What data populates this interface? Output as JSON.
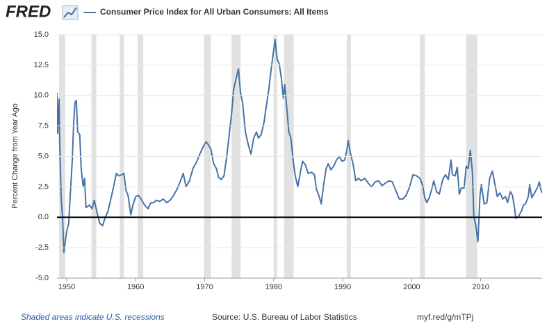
{
  "header": {
    "logo": "FRED"
  },
  "chart_data": {
    "type": "line",
    "ylabel": "Percent Change from Year Ago",
    "note": "Shaded areas indicate U.S. recessions",
    "source": "Source: U.S. Bureau of Labor Statistics",
    "link": "myf.red/g/mTPj",
    "xlim": [
      1948.6,
      2018.9
    ],
    "xticks": [
      1950,
      1960,
      1970,
      1980,
      1990,
      2000,
      2010
    ],
    "ylim": [
      -5,
      15
    ],
    "yticks": [
      {
        "value": -5,
        "label": "-5.0"
      },
      {
        "value": -2.5,
        "label": "-2.5"
      },
      {
        "value": 0,
        "label": "0.0"
      },
      {
        "value": 2.5,
        "label": "2.5"
      },
      {
        "value": 5,
        "label": "5.0"
      },
      {
        "value": 7.5,
        "label": "7.5"
      },
      {
        "value": 10,
        "label": "10.0"
      },
      {
        "value": 12.5,
        "label": "12.5"
      },
      {
        "value": 15,
        "label": "15.0"
      }
    ],
    "recessions": [
      [
        1948.9,
        1949.8
      ],
      [
        1953.6,
        1954.3
      ],
      [
        1957.7,
        1958.3
      ],
      [
        1960.3,
        1961.1
      ],
      [
        1969.9,
        1970.9
      ],
      [
        1973.9,
        1975.2
      ],
      [
        1980.0,
        1980.5
      ],
      [
        1981.5,
        1982.9
      ],
      [
        1990.6,
        1991.2
      ],
      [
        2001.2,
        2001.9
      ],
      [
        2007.9,
        2009.5
      ]
    ],
    "recession_color": "#e1e1e1",
    "x": [
      1948.6,
      1948.7,
      1948.9,
      1949.0,
      1949.2,
      1949.4,
      1949.6,
      1949.8,
      1950.0,
      1950.3,
      1950.5,
      1950.8,
      1951.0,
      1951.2,
      1951.4,
      1951.6,
      1951.9,
      1952.1,
      1952.4,
      1952.6,
      1952.8,
      1953.3,
      1953.7,
      1954.0,
      1954.4,
      1954.8,
      1955.2,
      1955.6,
      1956.0,
      1956.4,
      1956.8,
      1957.2,
      1957.6,
      1958.0,
      1958.3,
      1958.6,
      1958.9,
      1959.3,
      1959.6,
      1960.0,
      1960.4,
      1960.9,
      1961.3,
      1961.8,
      1962.2,
      1962.6,
      1963.0,
      1963.5,
      1964.0,
      1964.5,
      1965.0,
      1965.5,
      1966.0,
      1966.5,
      1966.9,
      1967.3,
      1967.8,
      1968.3,
      1968.8,
      1969.3,
      1969.8,
      1970.2,
      1970.5,
      1970.9,
      1971.3,
      1971.7,
      1972.0,
      1972.4,
      1972.8,
      1973.2,
      1973.6,
      1973.9,
      1974.2,
      1974.6,
      1974.9,
      1975.2,
      1975.5,
      1975.9,
      1976.3,
      1976.7,
      1977.1,
      1977.5,
      1977.8,
      1978.2,
      1978.6,
      1978.9,
      1979.3,
      1979.6,
      1979.9,
      1980.2,
      1980.5,
      1980.8,
      1981.1,
      1981.4,
      1981.6,
      1981.9,
      1982.2,
      1982.5,
      1982.8,
      1983.1,
      1983.5,
      1983.9,
      1984.2,
      1984.6,
      1985.0,
      1985.5,
      1985.9,
      1986.2,
      1986.6,
      1986.9,
      1987.2,
      1987.6,
      1987.9,
      1988.3,
      1988.7,
      1989.1,
      1989.5,
      1989.9,
      1990.3,
      1990.6,
      1990.8,
      1991.1,
      1991.5,
      1991.9,
      1992.3,
      1992.7,
      1993.2,
      1993.7,
      1994.2,
      1994.7,
      1995.2,
      1995.7,
      1996.2,
      1996.7,
      1997.2,
      1997.7,
      1998.2,
      1998.7,
      1999.2,
      1999.7,
      2000.2,
      2000.7,
      2001.2,
      2001.6,
      2001.9,
      2002.2,
      2002.6,
      2002.9,
      2003.2,
      2003.6,
      2004.0,
      2004.5,
      2004.9,
      2005.3,
      2005.7,
      2005.9,
      2006.3,
      2006.6,
      2006.9,
      2007.2,
      2007.6,
      2007.9,
      2008.2,
      2008.5,
      2008.8,
      2009.0,
      2009.3,
      2009.6,
      2009.9,
      2010.1,
      2010.5,
      2010.9,
      2011.3,
      2011.7,
      2012.0,
      2012.4,
      2012.8,
      2013.2,
      2013.6,
      2013.9,
      2014.3,
      2014.6,
      2014.9,
      2015.1,
      2015.5,
      2015.9,
      2016.2,
      2016.5,
      2016.9,
      2017.1,
      2017.4,
      2017.8,
      2018.2,
      2018.5,
      2018.7,
      2018.9
    ],
    "series": [
      {
        "name": "Consumer Price Index for All Urban Consumers: All Items",
        "color": "#4572a7",
        "values": [
          10.2,
          6.9,
          9.7,
          6.0,
          1.7,
          0.0,
          -2.9,
          -2.0,
          -1.2,
          -0.5,
          1.6,
          4.5,
          7.5,
          9.4,
          9.6,
          7.0,
          6.8,
          4.0,
          2.5,
          3.2,
          0.8,
          1.0,
          0.7,
          1.4,
          0.4,
          -0.5,
          -0.7,
          0.0,
          0.5,
          1.5,
          2.5,
          3.6,
          3.4,
          3.5,
          3.6,
          2.2,
          1.8,
          0.2,
          1.0,
          1.7,
          1.8,
          1.4,
          1.0,
          0.7,
          1.2,
          1.2,
          1.4,
          1.3,
          1.5,
          1.2,
          1.4,
          1.8,
          2.3,
          3.0,
          3.6,
          2.5,
          3.0,
          4.0,
          4.5,
          5.2,
          5.8,
          6.2,
          6.0,
          5.6,
          4.4,
          4.0,
          3.3,
          3.1,
          3.4,
          5.0,
          7.0,
          8.5,
          10.5,
          11.5,
          12.2,
          10.2,
          9.4,
          7.0,
          6.0,
          5.2,
          6.5,
          7.0,
          6.5,
          6.8,
          7.8,
          9.0,
          10.5,
          12.0,
          13.3,
          14.6,
          13.0,
          12.6,
          11.5,
          9.8,
          10.9,
          9.0,
          7.0,
          6.5,
          4.8,
          3.5,
          2.5,
          3.8,
          4.6,
          4.3,
          3.6,
          3.7,
          3.5,
          2.3,
          1.7,
          1.1,
          2.5,
          4.0,
          4.4,
          3.9,
          4.2,
          4.7,
          5.0,
          4.6,
          4.7,
          5.5,
          6.3,
          5.3,
          4.4,
          3.0,
          3.2,
          3.0,
          3.2,
          2.8,
          2.5,
          2.9,
          3.0,
          2.6,
          2.8,
          3.0,
          2.9,
          2.2,
          1.5,
          1.5,
          1.8,
          2.5,
          3.5,
          3.4,
          3.2,
          2.6,
          1.6,
          1.2,
          1.7,
          2.3,
          3.0,
          2.1,
          1.9,
          3.1,
          3.5,
          3.1,
          4.7,
          3.5,
          3.4,
          4.1,
          1.9,
          2.4,
          2.4,
          4.2,
          4.0,
          5.5,
          3.7,
          0.1,
          -0.7,
          -2.0,
          1.8,
          2.7,
          1.1,
          1.2,
          3.2,
          3.8,
          2.9,
          1.7,
          2.0,
          1.5,
          1.7,
          1.2,
          2.1,
          1.8,
          0.8,
          -0.1,
          0.1,
          0.5,
          1.0,
          1.1,
          1.7,
          2.7,
          1.6,
          2.0,
          2.4,
          2.9,
          2.3,
          2.0
        ]
      }
    ]
  }
}
